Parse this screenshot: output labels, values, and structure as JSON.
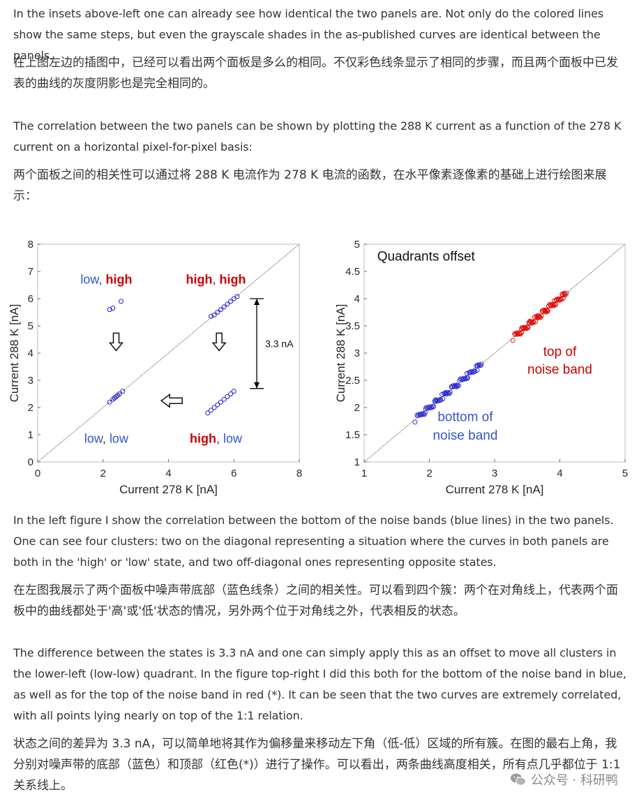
{
  "paragraphs": {
    "p1_en": "In the insets above-left one can already see how identical the two panels are. Not only do the colored lines show the same steps, but even the grayscale shades in the as-published curves are identical between the panels.",
    "p1_zh": "在上图左边的插图中，已经可以看出两个面板是多么的相同。不仅彩色线条显示了相同的步骤，而且两个面板中已发表的曲线的灰度阴影也是完全相同的。",
    "p2_en": "The correlation between the two panels can be shown by plotting the 288 K current as a function of the 278 K current on a horizontal pixel-for-pixel basis:",
    "p2_zh": "两个面板之间的相关性可以通过将 288 K 电流作为 278 K 电流的函数，在水平像素逐像素的基础上进行绘图来展示：",
    "p3_en": "In the left figure I show the correlation between the bottom of the noise bands (blue lines) in the two panels. One can see four clusters: two on the diagonal representing a situation where the curves in both panels are both in the 'high' or 'low' state, and two off-diagonal ones representing opposite states.",
    "p3_zh": "在左图我展示了两个面板中噪声带底部（蓝色线条）之间的相关性。可以看到四个簇：两个在对角线上，代表两个面板中的曲线都处于'高'或'低'状态的情况，另外两个位于对角线之外，代表相反的状态。",
    "p4_en": "The difference between the states is 3.3 nA and one can simply apply this as an offset to move all clusters in the lower-left (low-low) quadrant. In the figure top-right I did this both for the bottom of the noise band in blue, as well as for the top of the noise band in red (*). It can be seen that the two curves are extremely correlated, with all points lying nearly on top of the 1:1 relation.",
    "p4_zh": "状态之间的差异为 3.3 nA，可以简单地将其作为偏移量来移动左下角（低-低）区域的所有簇。在图的最右上角，我分别对噪声带的底部（蓝色）和顶部（红色(*)）进行了操作。可以看出，两条曲线高度相关，所有点几乎都位于 1:1 关系线上。"
  },
  "watermark": {
    "icon": "wechat-icon",
    "text": "公众号 · 科研鸭"
  },
  "chart_data": [
    {
      "type": "scatter",
      "title": "",
      "xlabel": "Current 278 K [nA]",
      "ylabel": "Current 288 K [nA]",
      "xlim": [
        0,
        8
      ],
      "ylim": [
        0,
        8
      ],
      "xticks": [
        "0",
        "2",
        "4",
        "6",
        "8"
      ],
      "yticks": [
        "0",
        "1",
        "2",
        "3",
        "4",
        "5",
        "6",
        "7",
        "8"
      ],
      "diagonal": "1:1 dotted line",
      "marker_color": "#1f1fd0",
      "series": [
        {
          "points": [
            [
              2.2,
              5.6
            ],
            [
              2.3,
              5.65
            ],
            [
              2.55,
              5.9
            ]
          ]
        },
        {
          "points": [
            [
              5.3,
              5.35
            ],
            [
              5.4,
              5.4
            ],
            [
              5.5,
              5.5
            ],
            [
              5.6,
              5.6
            ],
            [
              5.7,
              5.7
            ],
            [
              5.8,
              5.8
            ],
            [
              5.9,
              5.9
            ],
            [
              6.0,
              6.0
            ],
            [
              6.1,
              6.08
            ]
          ]
        },
        {
          "points": [
            [
              2.2,
              2.2
            ],
            [
              2.3,
              2.3
            ],
            [
              2.35,
              2.35
            ],
            [
              2.4,
              2.4
            ],
            [
              2.45,
              2.45
            ],
            [
              2.5,
              2.5
            ],
            [
              2.6,
              2.6
            ]
          ]
        },
        {
          "points": [
            [
              5.2,
              1.8
            ],
            [
              5.3,
              1.9
            ],
            [
              5.4,
              2.0
            ],
            [
              5.5,
              2.1
            ],
            [
              5.6,
              2.2
            ],
            [
              5.7,
              2.3
            ],
            [
              5.8,
              2.4
            ],
            [
              5.9,
              2.5
            ],
            [
              6.0,
              2.6
            ]
          ]
        }
      ],
      "annotations": [
        {
          "text_a": "low",
          "sep": ", ",
          "text_b": "high",
          "color_a": "#3355cc",
          "color_b": "#cc0000"
        },
        {
          "text_a": "high",
          "sep": ", ",
          "text_b": "high",
          "color_a": "#cc0000",
          "color_b": "#cc0000"
        },
        {
          "text_a": "low",
          "sep": ", ",
          "text_b": "low",
          "color_a": "#3355cc",
          "color_b": "#3355cc"
        },
        {
          "text_a": "high",
          "sep": ", ",
          "text_b": "low",
          "color_a": "#cc0000",
          "color_b": "#3355cc"
        }
      ],
      "gap_label": "3.3 nA",
      "gap_range": [
        2.7,
        6.0
      ]
    },
    {
      "type": "scatter",
      "title": "Quadrants offset",
      "xlabel": "Current 278 K [nA]",
      "ylabel": "Current 288 K [nA]",
      "xlim": [
        1,
        5
      ],
      "ylim": [
        1,
        5
      ],
      "xticks": [
        "1",
        "2",
        "3",
        "4",
        "5"
      ],
      "yticks": [
        "1",
        "1.5",
        "2",
        "2.5",
        "3",
        "3.5",
        "4",
        "4.5",
        "5"
      ],
      "diagonal": "1:1 dotted line",
      "series": [
        {
          "color": "#1f1fd0",
          "range": [
            1.8,
            2.8
          ],
          "label_line1": "bottom of",
          "label_line2": "noise band",
          "label_color": "#3355cc"
        },
        {
          "color": "#e00000",
          "range": [
            3.3,
            4.1
          ],
          "label_line1": "top of",
          "label_line2": "noise band",
          "label_color": "#cc0000"
        }
      ]
    }
  ]
}
